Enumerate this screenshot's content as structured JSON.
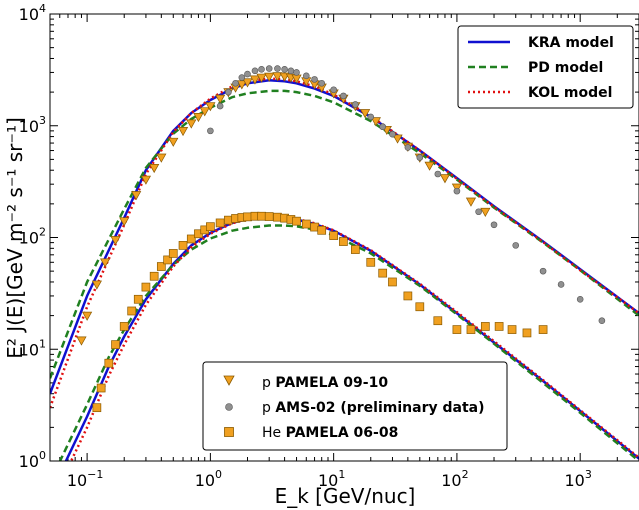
{
  "chart_data": {
    "type": "line",
    "xlabel": "E_k [GeV/nuc]",
    "ylabel": "E² J(E)[GeV m⁻² s⁻¹ sr⁻¹]",
    "xscale": "log",
    "yscale": "log",
    "xlim": [
      0.05,
      3000
    ],
    "ylim": [
      1,
      10000
    ],
    "x_tick_labels": [
      {
        "base": "10",
        "exp": "−1"
      },
      {
        "base": "10",
        "exp": "0"
      },
      {
        "base": "10",
        "exp": "1"
      },
      {
        "base": "10",
        "exp": "2"
      },
      {
        "base": "10",
        "exp": "3"
      }
    ],
    "y_tick_labels": [
      {
        "base": "10",
        "exp": "0"
      },
      {
        "base": "10",
        "exp": "1"
      },
      {
        "base": "10",
        "exp": "2"
      },
      {
        "base": "10",
        "exp": "3"
      },
      {
        "base": "10",
        "exp": "4"
      }
    ],
    "model_legend": {
      "placement": "top-right",
      "entries": [
        {
          "label": "KRA model",
          "color": "#1010d0",
          "dash": "solid"
        },
        {
          "label": "PD model",
          "color": "#208020",
          "dash": "dashed"
        },
        {
          "label": "KOL model",
          "color": "#e01010",
          "dash": "dotted"
        }
      ]
    },
    "data_legend": {
      "placement": "bottom-center",
      "entries": [
        {
          "prefix": "p",
          "label": "PAMELA 09-10",
          "marker": "triangle-down",
          "color": "#f0a020"
        },
        {
          "prefix": "p",
          "label": "AMS-02 (preliminary data)",
          "marker": "circle",
          "color": "#909090"
        },
        {
          "prefix": "He",
          "label": "PAMELA 06-08",
          "marker": "square",
          "color": "#f0a020"
        }
      ]
    },
    "series": [
      {
        "name": "KRA model",
        "group": "p",
        "color": "#1010d0",
        "dash": "solid",
        "x": [
          0.05,
          0.1,
          0.2,
          0.3,
          0.5,
          0.7,
          1,
          1.5,
          2,
          3,
          4,
          5,
          7,
          10,
          20,
          50,
          100,
          200,
          500,
          1000,
          3000
        ],
        "y": [
          4.0,
          30,
          150,
          400,
          900,
          1300,
          1700,
          2150,
          2400,
          2550,
          2500,
          2400,
          2150,
          1850,
          1200,
          600,
          340,
          190,
          92,
          52,
          21
        ]
      },
      {
        "name": "PD model",
        "group": "p",
        "color": "#208020",
        "dash": "dashed",
        "x": [
          0.05,
          0.1,
          0.2,
          0.3,
          0.5,
          0.7,
          1,
          1.5,
          2,
          3,
          4,
          5,
          7,
          10,
          20,
          50,
          100,
          200,
          500,
          1000,
          3000
        ],
        "y": [
          5.5,
          40,
          180,
          420,
          850,
          1150,
          1450,
          1800,
          1950,
          2050,
          2050,
          2000,
          1850,
          1620,
          1100,
          570,
          330,
          185,
          90,
          51,
          20
        ]
      },
      {
        "name": "KOL model",
        "group": "p",
        "color": "#e01010",
        "dash": "dotted",
        "x": [
          0.05,
          0.1,
          0.2,
          0.3,
          0.5,
          0.7,
          1,
          1.5,
          2,
          3,
          4,
          5,
          7,
          10,
          20,
          50,
          100,
          200,
          500,
          1000,
          3000
        ],
        "y": [
          3.0,
          24,
          130,
          370,
          880,
          1300,
          1750,
          2250,
          2500,
          2650,
          2600,
          2500,
          2250,
          1900,
          1220,
          600,
          335,
          188,
          91,
          51,
          21
        ]
      },
      {
        "name": "KRA model",
        "group": "He",
        "color": "#1010d0",
        "dash": "solid",
        "x": [
          0.05,
          0.1,
          0.15,
          0.2,
          0.3,
          0.5,
          0.7,
          1,
          1.5,
          2,
          3,
          4,
          5,
          7,
          10,
          20,
          50,
          100,
          200,
          500,
          1000,
          3000
        ],
        "y": [
          0.5,
          2.5,
          7,
          13,
          28,
          58,
          85,
          110,
          135,
          146,
          152,
          150,
          145,
          132,
          115,
          76,
          38,
          21,
          11.5,
          5.2,
          2.8,
          1.05
        ]
      },
      {
        "name": "PD model",
        "group": "He",
        "color": "#208020",
        "dash": "dashed",
        "x": [
          0.05,
          0.1,
          0.15,
          0.2,
          0.3,
          0.5,
          0.7,
          1,
          1.5,
          2,
          3,
          4,
          5,
          7,
          10,
          20,
          50,
          100,
          200,
          500,
          1000,
          3000
        ],
        "y": [
          0.65,
          3.2,
          8.5,
          15,
          30,
          57,
          78,
          98,
          115,
          122,
          128,
          128,
          126,
          118,
          105,
          72,
          37,
          20.5,
          11.2,
          5.0,
          2.7,
          1.0
        ]
      },
      {
        "name": "KOL model",
        "group": "He",
        "color": "#e01010",
        "dash": "dotted",
        "x": [
          0.05,
          0.1,
          0.15,
          0.2,
          0.3,
          0.5,
          0.7,
          1,
          1.5,
          2,
          3,
          4,
          5,
          7,
          10,
          20,
          50,
          100,
          200,
          500,
          1000,
          3000
        ],
        "y": [
          0.4,
          2.0,
          5.8,
          11,
          25,
          55,
          82,
          108,
          134,
          146,
          153,
          152,
          147,
          134,
          116,
          77,
          38.5,
          21.5,
          11.8,
          5.3,
          2.85,
          1.07
        ]
      },
      {
        "name": "p PAMELA 09-10",
        "kind": "points",
        "marker": "triangle-down",
        "color": "#f0a020",
        "x": [
          0.09,
          0.1,
          0.12,
          0.14,
          0.17,
          0.2,
          0.25,
          0.3,
          0.35,
          0.4,
          0.5,
          0.6,
          0.7,
          0.8,
          0.9,
          1.0,
          1.2,
          1.4,
          1.6,
          1.8,
          2.0,
          2.3,
          2.6,
          3.0,
          3.5,
          4.0,
          4.5,
          5.0,
          6.0,
          7.0,
          8.0,
          10,
          12,
          15,
          18,
          22,
          27,
          33,
          40,
          50,
          60,
          80,
          100,
          130,
          170
        ],
        "y": [
          12,
          20,
          38,
          60,
          95,
          140,
          240,
          330,
          420,
          520,
          720,
          900,
          1050,
          1200,
          1350,
          1500,
          1750,
          2000,
          2200,
          2350,
          2450,
          2600,
          2700,
          2750,
          2780,
          2760,
          2700,
          2650,
          2500,
          2350,
          2200,
          1950,
          1750,
          1500,
          1300,
          1100,
          920,
          770,
          650,
          520,
          440,
          340,
          280,
          210,
          170
        ]
      },
      {
        "name": "p AMS-02 (preliminary data)",
        "kind": "points",
        "marker": "circle",
        "color": "#909090",
        "x": [
          1.0,
          1.2,
          1.4,
          1.6,
          1.8,
          2.0,
          2.3,
          2.6,
          3.0,
          3.5,
          4.0,
          4.5,
          5.0,
          6.0,
          7.0,
          8.0,
          10,
          12,
          15,
          20,
          25,
          30,
          40,
          50,
          70,
          100,
          150,
          200,
          300,
          500,
          700,
          1000,
          1500
        ],
        "y": [
          900,
          1500,
          2000,
          2400,
          2700,
          2900,
          3100,
          3200,
          3250,
          3250,
          3200,
          3100,
          3000,
          2800,
          2600,
          2400,
          2100,
          1850,
          1550,
          1200,
          980,
          840,
          640,
          520,
          370,
          260,
          170,
          130,
          85,
          50,
          38,
          28,
          18
        ]
      },
      {
        "name": "He PAMELA 06-08",
        "kind": "points",
        "marker": "square",
        "color": "#f0a020",
        "x": [
          0.12,
          0.13,
          0.15,
          0.17,
          0.2,
          0.23,
          0.26,
          0.3,
          0.35,
          0.4,
          0.45,
          0.5,
          0.6,
          0.7,
          0.8,
          0.9,
          1.0,
          1.2,
          1.4,
          1.6,
          1.8,
          2.0,
          2.3,
          2.6,
          3.0,
          3.5,
          4.0,
          4.5,
          5.0,
          6.0,
          7.0,
          8.0,
          10,
          12,
          15,
          20,
          25,
          30,
          40,
          50,
          70,
          100,
          130,
          170,
          220,
          280,
          370,
          500
        ],
        "y": [
          3.0,
          4.5,
          7.5,
          11,
          16,
          22,
          28,
          36,
          45,
          55,
          63,
          72,
          85,
          97,
          108,
          117,
          125,
          135,
          143,
          148,
          151,
          153,
          155,
          155,
          154,
          152,
          149,
          145,
          140,
          132,
          124,
          116,
          104,
          92,
          78,
          60,
          48,
          40,
          30,
          24,
          18,
          15,
          15,
          16,
          16,
          15,
          14,
          15
        ]
      }
    ]
  }
}
